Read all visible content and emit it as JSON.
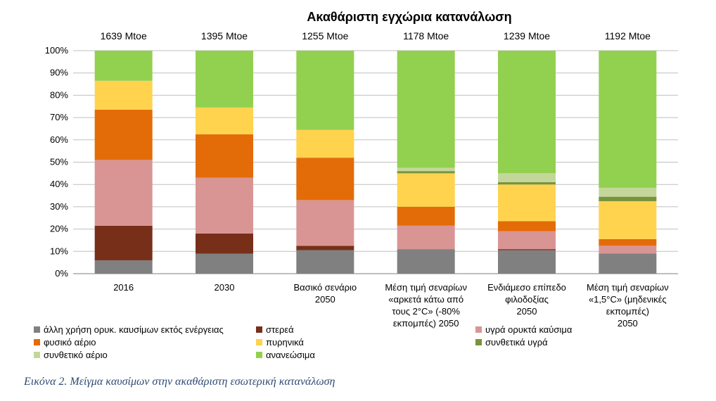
{
  "chart_data": {
    "type": "bar",
    "stacked": true,
    "title": "Ακαθάριστη εγχώρια κατανάλωση",
    "ylim": [
      0,
      100
    ],
    "y_ticks": [
      "0%",
      "10%",
      "20%",
      "30%",
      "40%",
      "50%",
      "60%",
      "70%",
      "80%",
      "90%",
      "100%"
    ],
    "totals": [
      "1639 Mtoe",
      "1395 Mtoe",
      "1255 Mtoe",
      "1178 Mtoe",
      "1239 Mtoe",
      "1192 Mtoe"
    ],
    "categories": [
      [
        "2016"
      ],
      [
        "2030"
      ],
      [
        "Βασικό σενάριο",
        "2050"
      ],
      [
        "Μέση τιμή σεναρίων",
        "«αρκετά κάτω από",
        "τους 2°C» (-80%",
        "εκπομπές) 2050"
      ],
      [
        "Ενδιάμεσο επίπεδο",
        "φιλοδοξίας",
        "2050"
      ],
      [
        "Μέση τιμή σεναρίων",
        "«1,5°C» (μηδενικές",
        "εκπομπές)",
        "2050"
      ]
    ],
    "series": [
      {
        "name": "άλλη χρήση ορυκ. καυσίμων εκτός ενέργειας",
        "color": "#808080",
        "values": [
          6,
          9,
          10.5,
          11,
          10.5,
          9
        ]
      },
      {
        "name": "στερεά",
        "color": "#772f1a",
        "values": [
          15.5,
          9,
          2,
          0,
          0.5,
          0
        ]
      },
      {
        "name": "υγρά ορυκτά καύσιμα",
        "color": "#d99594",
        "values": [
          29.5,
          25,
          20.5,
          10.5,
          8,
          3.5
        ]
      },
      {
        "name": "φυσικό αέριο",
        "color": "#e36c09",
        "values": [
          22.5,
          19.5,
          19,
          8.5,
          4.5,
          3
        ]
      },
      {
        "name": "πυρηνικά",
        "color": "#ffd34e",
        "values": [
          13,
          12,
          12.5,
          15,
          16.5,
          17
        ]
      },
      {
        "name": "συνθετικά υγρά",
        "color": "#77933c",
        "values": [
          0,
          0,
          0,
          1,
          1,
          2
        ]
      },
      {
        "name": "συνθετικό αέριο",
        "color": "#c4d79b",
        "values": [
          0,
          0,
          0,
          1.5,
          4,
          4
        ]
      },
      {
        "name": "ανανεώσιμα",
        "color": "#92d050",
        "values": [
          13.5,
          25.5,
          35.5,
          52.5,
          55,
          61.5
        ]
      }
    ]
  },
  "caption": "Εικόνα 2. Μείγμα καυσίμων στην ακαθάριστη εσωτερική κατανάλωση"
}
